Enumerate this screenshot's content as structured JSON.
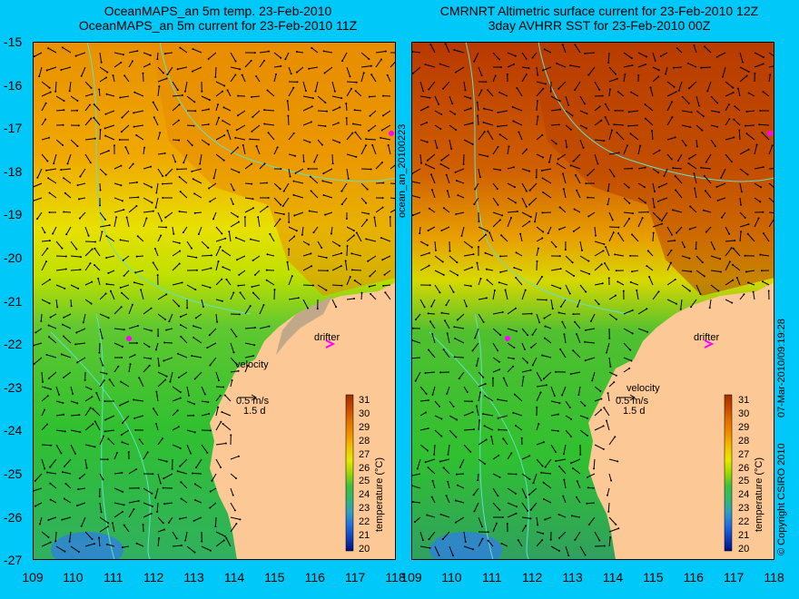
{
  "titles": {
    "left_line1": "OceanMAPS_an 5m temp. 23-Feb-2010",
    "left_line2": "OceanMAPS_an 5m current for 23-Feb-2010 11Z",
    "right_line1": "CMRNRT Altimetric surface current for 23-Feb-2010 12Z",
    "right_line2": "3day AVHRR SST for 23-Feb-2010 00Z"
  },
  "axes": {
    "lat_ticks": [
      "-15",
      "-16",
      "-17",
      "-18",
      "-19",
      "-20",
      "-21",
      "-22",
      "-23",
      "-24",
      "-25",
      "-26",
      "-27"
    ],
    "lon_ticks": [
      "109",
      "110",
      "111",
      "112",
      "113",
      "114",
      "115",
      "116",
      "117",
      "118"
    ]
  },
  "side_labels": {
    "file_id": "ocean_an_20100223",
    "timestamp": "07-Mar-2010/09:19:28",
    "copyright": "© Copyright CSIRO 2010"
  },
  "legend": {
    "velocity_label": "velocity",
    "speed_label": "0.5 m/s",
    "duration_label": "1.5 d",
    "drifter_label": "drifter",
    "colorbar_title": "temperature (°C)",
    "colorbar_ticks": [
      "31",
      "30",
      "29",
      "28",
      "27",
      "26",
      "25",
      "24",
      "23",
      "22",
      "21",
      "20"
    ],
    "colorbar_range": [
      20,
      31
    ]
  },
  "colors": {
    "background": "#00c8f8",
    "land": "#fbc896",
    "land_shelf": "#c0a888",
    "bathymetry": "#60e0c8",
    "drifter": "#ff00ff",
    "warm": "#b83800",
    "mid_orange": "#e89000",
    "yellow": "#e8e000",
    "green": "#30c030",
    "cool_blue": "#3080e0"
  }
}
